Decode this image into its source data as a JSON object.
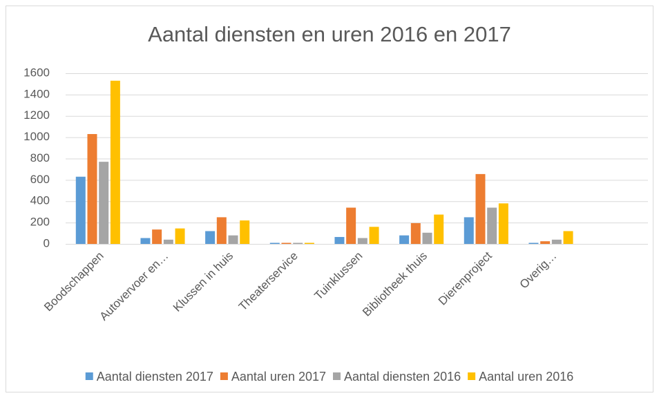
{
  "chart_data": {
    "type": "bar",
    "title": "Aantal diensten en uren 2016 en 2017",
    "categories": [
      "Boodschappen",
      "Autovervoer en…",
      "Klussen in huis",
      "Theaterservice",
      "Tuinklussen",
      "Bibliotheek thuis",
      "Dierenproject",
      "Overig…",
      null
    ],
    "series": [
      {
        "name": "Aantal diensten 2017",
        "color": "#5b9bd5",
        "values": [
          630,
          55,
          120,
          10,
          65,
          80,
          250,
          10,
          null
        ]
      },
      {
        "name": "Aantal uren 2017",
        "color": "#ed7d31",
        "values": [
          1030,
          135,
          250,
          10,
          340,
          195,
          655,
          25,
          null
        ]
      },
      {
        "name": "Aantal diensten 2016",
        "color": "#a5a5a5",
        "values": [
          770,
          40,
          80,
          10,
          55,
          105,
          340,
          40,
          null
        ]
      },
      {
        "name": "Aantal uren 2016",
        "color": "#ffc000",
        "values": [
          1530,
          145,
          220,
          10,
          160,
          275,
          380,
          120,
          null
        ]
      }
    ],
    "ylim": [
      0,
      1600
    ],
    "yticks": [
      0,
      200,
      400,
      600,
      800,
      1000,
      1200,
      1400,
      1600
    ],
    "grid": true,
    "legend": "bottom"
  }
}
